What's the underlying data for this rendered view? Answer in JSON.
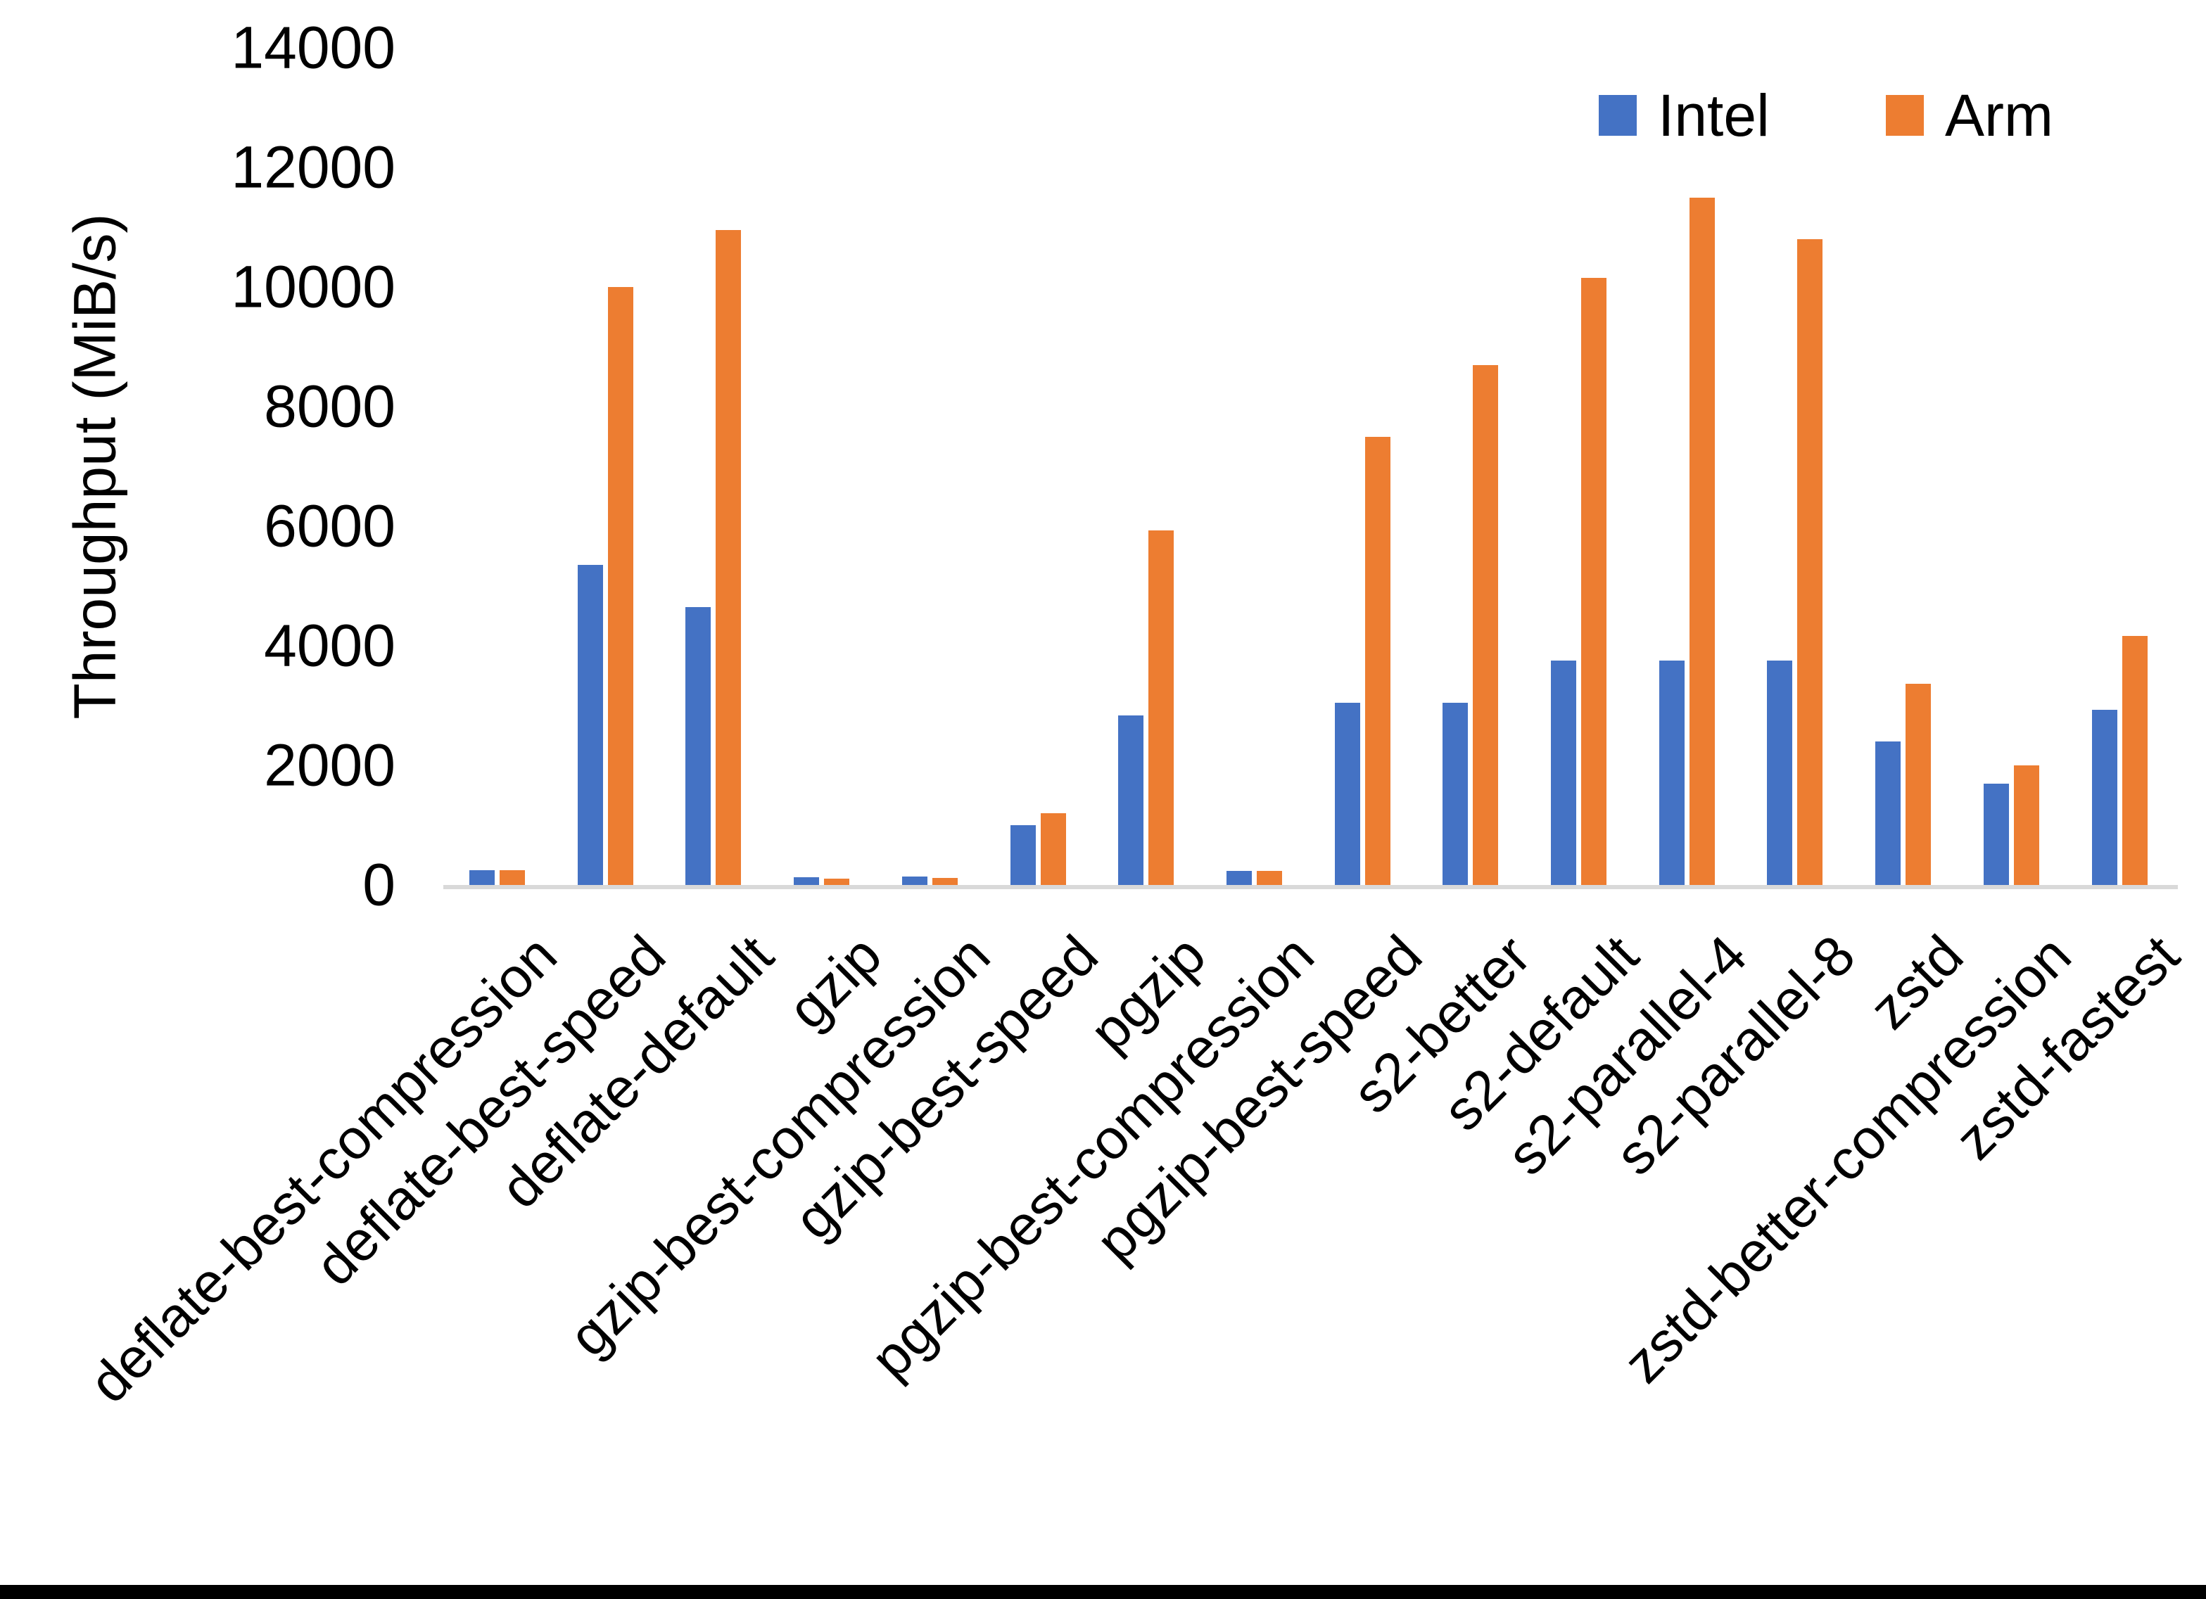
{
  "chart_data": {
    "type": "bar",
    "title": "",
    "xlabel": "",
    "ylabel": "Throughput (MiB/s)",
    "ylim": [
      0,
      14000
    ],
    "ytick_step": 2000,
    "ytick_labels": [
      "0",
      "2000",
      "4000",
      "6000",
      "8000",
      "10000",
      "12000",
      "14000"
    ],
    "grid": false,
    "legend_position": "top-right",
    "categories": [
      "deflate-best-compression",
      "deflate-best-speed",
      "deflate-default",
      "gzip",
      "gzip-best-compression",
      "gzip-best-speed",
      "pgzip",
      "pgzip-best-compression",
      "pgzip-best-speed",
      "s2-better",
      "s2-default",
      "s2-parallel-4",
      "s2-parallel-8",
      "zstd",
      "zstd-better-compression",
      "zstd-fastest"
    ],
    "series": [
      {
        "name": "Intel",
        "color": "#4472C4",
        "values": [
          245,
          5350,
          4650,
          130,
          140,
          1000,
          2830,
          240,
          3050,
          3050,
          3750,
          3750,
          3750,
          2400,
          1700,
          2930
        ]
      },
      {
        "name": "Arm",
        "color": "#ED7D31",
        "values": [
          250,
          10000,
          10950,
          110,
          120,
          1200,
          5930,
          235,
          7500,
          8700,
          10150,
          11500,
          10800,
          3370,
          2000,
          4160
        ]
      }
    ]
  },
  "colors": {
    "axis_line": "#D9D9D9",
    "text": "#000000",
    "background": "#FFFFFF",
    "bottom_border": "#000000"
  }
}
